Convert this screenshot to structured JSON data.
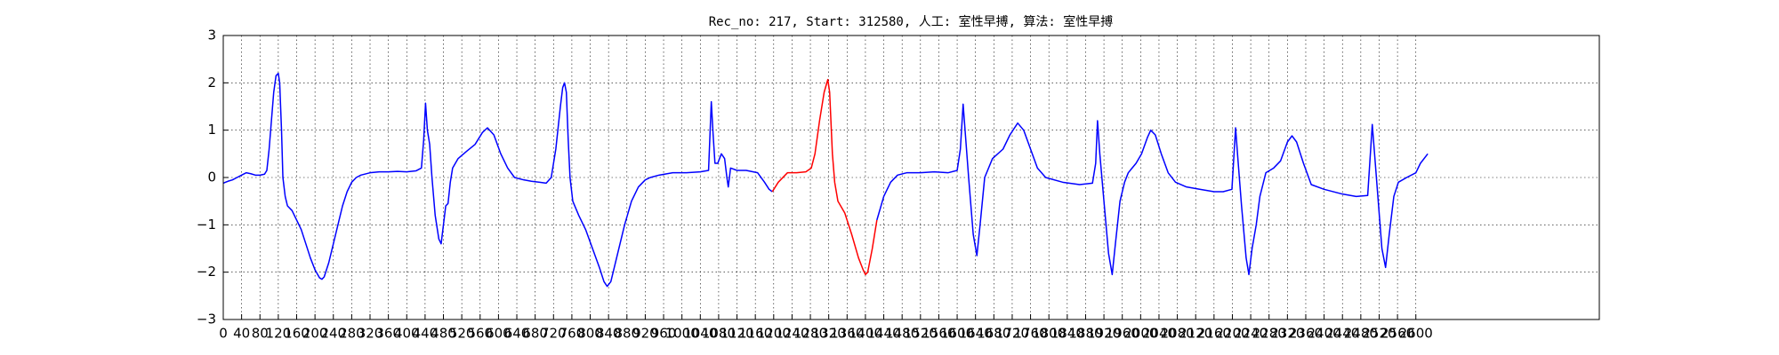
{
  "chart_data": {
    "type": "line",
    "title": "Rec_no: 217, Start: 312580, 人工: 室性早搏, 算法: 室性早搏",
    "xlim": [
      0,
      3000
    ],
    "ylim": [
      -3,
      3
    ],
    "grid": true,
    "xticks": [
      0,
      40,
      80,
      120,
      160,
      200,
      240,
      280,
      320,
      360,
      400,
      440,
      480,
      520,
      560,
      600,
      640,
      680,
      720,
      760,
      800,
      840,
      880,
      920,
      960,
      1000,
      1040,
      1080,
      1120,
      1160,
      1200,
      1240,
      1280,
      1320,
      1360,
      1400,
      1440,
      1480,
      1520,
      1560,
      1600,
      1640,
      1680,
      1720,
      1760,
      1800,
      1840,
      1880,
      1920,
      1960,
      2000,
      2040,
      2080,
      2120,
      2160,
      2200,
      2240,
      2280,
      2320,
      2360,
      2400,
      2440,
      2480,
      2520,
      2560,
      2600
    ],
    "yticks": [
      {
        "value": -3,
        "label": "−3"
      },
      {
        "value": -2,
        "label": "−2"
      },
      {
        "value": -1,
        "label": "−1"
      },
      0,
      1,
      2,
      3
    ],
    "series": [
      {
        "color": "#0000ff",
        "x": [
          0,
          10,
          20,
          30,
          40,
          50,
          60,
          70,
          80,
          90,
          95,
          100,
          105,
          110,
          115,
          120,
          123,
          127,
          130,
          135,
          140,
          150,
          160,
          170,
          180,
          190,
          200,
          210,
          215,
          220,
          230,
          240,
          250,
          260,
          270,
          280,
          290,
          300,
          320,
          340,
          360,
          380,
          400,
          420,
          432,
          437,
          441,
          445,
          450,
          455,
          462,
          470,
          475,
          480,
          485,
          490,
          495,
          500,
          512,
          530,
          549,
          565,
          576,
          590,
          605,
          620,
          635,
          655,
          672,
          690,
          704,
          715,
          725,
          735,
          740,
          744,
          748,
          752,
          756,
          762,
          775,
          790,
          805,
          820,
          830,
          837,
          845,
          860,
          875,
          890,
          905,
          920,
          931,
          950,
          980,
          1010,
          1040,
          1058,
          1064,
          1068,
          1072,
          1078,
          1086,
          1093,
          1098,
          1101,
          1106,
          1120,
          1140,
          1165,
          1180,
          1190,
          1197,
          1300,
          1425,
          1440,
          1455,
          1470,
          1490,
          1520,
          1550,
          1580,
          1600,
          1607,
          1613,
          1618,
          1625,
          1635,
          1643,
          1650,
          1660,
          1677,
          1700,
          1715,
          1732,
          1745,
          1760,
          1775,
          1793,
          1830,
          1867,
          1895,
          1902,
          1906,
          1911,
          1920,
          1930,
          1938,
          1945,
          1955,
          1965,
          1973,
          1990,
          2002,
          2015,
          2022,
          2032,
          2045,
          2060,
          2076,
          2100,
          2130,
          2160,
          2180,
          2199,
          2207,
          2212,
          2220,
          2230,
          2236,
          2243,
          2252,
          2260,
          2273,
          2290,
          2305,
          2320,
          2330,
          2340,
          2355,
          2372,
          2400,
          2440,
          2470,
          2495,
          2505,
          2510,
          2518,
          2526,
          2534,
          2542,
          2552,
          2562,
          2580,
          2600,
          2610,
          2626
        ],
        "values": [
          -0.12,
          -0.08,
          -0.05,
          0.0,
          0.05,
          0.1,
          0.08,
          0.05,
          0.05,
          0.07,
          0.15,
          0.6,
          1.2,
          1.8,
          2.15,
          2.2,
          2.0,
          1.0,
          0.0,
          -0.4,
          -0.6,
          -0.7,
          -0.9,
          -1.1,
          -1.4,
          -1.7,
          -1.95,
          -2.12,
          -2.15,
          -2.1,
          -1.8,
          -1.4,
          -1.0,
          -0.6,
          -0.3,
          -0.1,
          0.0,
          0.05,
          0.1,
          0.12,
          0.12,
          0.13,
          0.12,
          0.14,
          0.2,
          0.8,
          1.57,
          1.0,
          0.7,
          0.0,
          -0.8,
          -1.3,
          -1.4,
          -1.0,
          -0.6,
          -0.55,
          -0.1,
          0.2,
          0.4,
          0.55,
          0.7,
          0.95,
          1.05,
          0.9,
          0.5,
          0.2,
          0.0,
          -0.05,
          -0.08,
          -0.1,
          -0.12,
          0.0,
          0.6,
          1.5,
          1.9,
          2.0,
          1.8,
          0.8,
          0.0,
          -0.5,
          -0.8,
          -1.1,
          -1.5,
          -1.9,
          -2.2,
          -2.3,
          -2.2,
          -1.6,
          -1.0,
          -0.5,
          -0.2,
          -0.05,
          0.0,
          0.05,
          0.1,
          0.1,
          0.12,
          0.15,
          1.6,
          0.9,
          0.3,
          0.3,
          0.5,
          0.4,
          0.0,
          -0.2,
          0.2,
          0.15,
          0.15,
          0.1,
          -0.1,
          -0.25,
          -0.3,
          null,
          -0.9,
          -0.4,
          -0.1,
          0.05,
          0.1,
          0.1,
          0.12,
          0.1,
          0.15,
          0.6,
          1.55,
          0.9,
          0.0,
          -1.2,
          -1.65,
          -1.0,
          0.0,
          0.4,
          0.6,
          0.9,
          1.15,
          1.0,
          0.6,
          0.2,
          0.0,
          -0.1,
          -0.15,
          -0.12,
          0.3,
          1.2,
          0.5,
          -0.5,
          -1.6,
          -2.05,
          -1.4,
          -0.5,
          -0.1,
          0.1,
          0.3,
          0.5,
          0.85,
          1.0,
          0.9,
          0.5,
          0.1,
          -0.1,
          -0.2,
          -0.25,
          -0.3,
          -0.3,
          -0.25,
          1.05,
          0.4,
          -0.6,
          -1.7,
          -2.05,
          -1.5,
          -1.0,
          -0.4,
          0.1,
          0.2,
          0.35,
          0.75,
          0.88,
          0.75,
          0.3,
          -0.15,
          -0.25,
          -0.35,
          -0.4,
          -0.38,
          1.12,
          0.5,
          -0.5,
          -1.5,
          -1.9,
          -1.2,
          -0.4,
          -0.1,
          0.0,
          0.1,
          0.3,
          0.5
        ]
      },
      {
        "color": "#ff0000",
        "x": [
          1197,
          1210,
          1230,
          1250,
          1270,
          1282,
          1290,
          1300,
          1310,
          1318,
          1322,
          1328,
          1333,
          1340,
          1355,
          1370,
          1385,
          1395,
          1400,
          1405,
          1415,
          1425
        ],
        "values": [
          -0.3,
          -0.1,
          0.1,
          0.1,
          0.12,
          0.2,
          0.5,
          1.2,
          1.8,
          2.07,
          1.8,
          0.5,
          -0.1,
          -0.5,
          -0.75,
          -1.2,
          -1.7,
          -1.95,
          -2.05,
          -2.0,
          -1.5,
          -0.9
        ]
      }
    ]
  }
}
